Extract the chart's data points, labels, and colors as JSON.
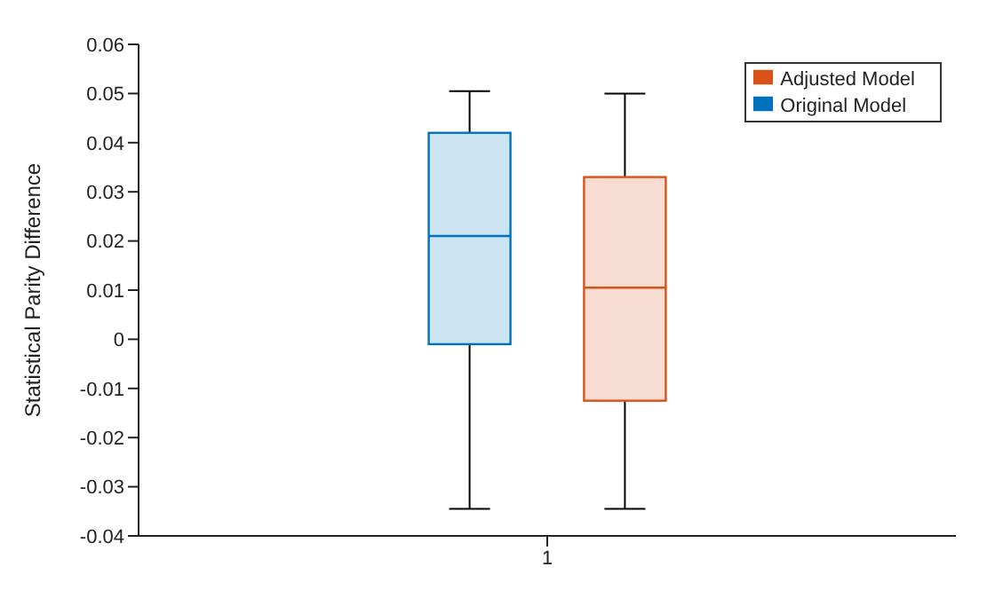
{
  "chart_data": {
    "type": "box",
    "ylabel": "Statistical Parity Difference",
    "categories": [
      "1"
    ],
    "ylim": [
      -0.04,
      0.06
    ],
    "yticks": [
      -0.04,
      -0.03,
      -0.02,
      -0.01,
      0,
      0.01,
      0.02,
      0.03,
      0.04,
      0.05,
      0.06
    ],
    "grid": false,
    "legend": "top right",
    "series": [
      {
        "name": "Original Model",
        "color": "#0072bd",
        "boxes": [
          {
            "low": -0.0345,
            "q1": -0.001,
            "median": 0.021,
            "q3": 0.042,
            "high": 0.0505
          }
        ]
      },
      {
        "name": "Adjusted Model",
        "color": "#d95319",
        "boxes": [
          {
            "low": -0.0345,
            "q1": -0.0125,
            "median": 0.0105,
            "q3": 0.033,
            "high": 0.05
          }
        ]
      }
    ]
  }
}
